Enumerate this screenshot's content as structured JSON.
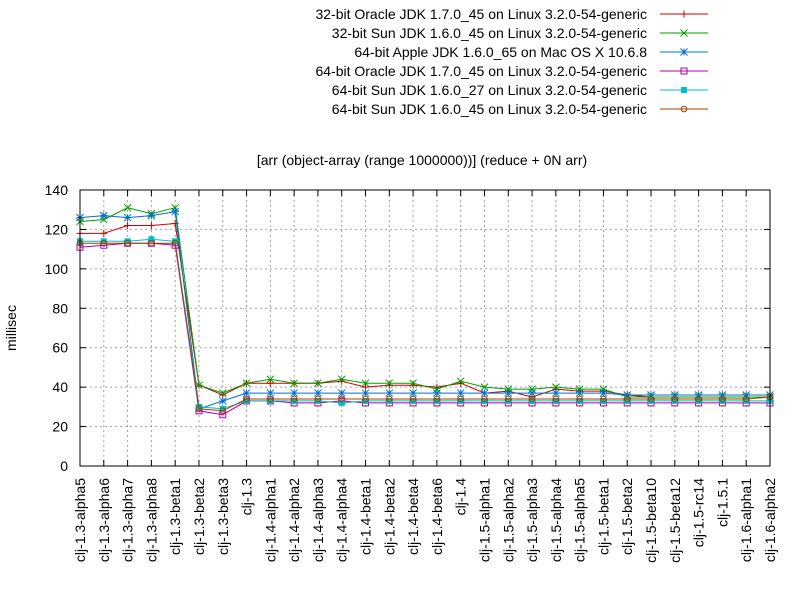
{
  "chart_data": {
    "type": "line",
    "title": "[arr (object-array (range 1000000))] (reduce + 0N arr)",
    "xlabel": "",
    "ylabel": "millisec",
    "ylim": [
      0,
      140
    ],
    "yticks": [
      0,
      20,
      40,
      60,
      80,
      100,
      120,
      140
    ],
    "grid": true,
    "legend_position": "top-right",
    "categories": [
      "clj-1.3-alpha5",
      "clj-1.3-alpha6",
      "clj-1.3-alpha7",
      "clj-1.3-alpha8",
      "clj-1.3-beta1",
      "clj-1.3-beta2",
      "clj-1.3-beta3",
      "clj-1.3",
      "clj-1.4-alpha1",
      "clj-1.4-alpha2",
      "clj-1.4-alpha3",
      "clj-1.4-alpha4",
      "clj-1.4-beta1",
      "clj-1.4-beta2",
      "clj-1.4-beta4",
      "clj-1.4-beta6",
      "clj-1.4",
      "clj-1.5-alpha1",
      "clj-1.5-alpha2",
      "clj-1.5-alpha3",
      "clj-1.5-alpha4",
      "clj-1.5-alpha5",
      "clj-1.5-beta1",
      "clj-1.5-beta2",
      "clj-1.5-beta10",
      "clj-1.5-beta12",
      "clj-1.5-rc14",
      "clj-1.5.1",
      "clj-1.6-alpha1",
      "clj-1.6-alpha2"
    ],
    "series": [
      {
        "name": "32-bit Oracle JDK 1.7.0_45 on Linux 3.2.0-54-generic",
        "color": "#cc0000",
        "marker": "plus",
        "values": [
          118,
          118,
          122,
          122,
          123,
          41,
          36,
          42,
          42,
          42,
          42,
          43,
          40,
          41,
          41,
          40,
          42,
          37,
          38,
          35,
          39,
          38,
          38,
          36,
          35,
          35,
          35,
          35,
          35,
          35
        ]
      },
      {
        "name": "32-bit Sun JDK 1.6.0_45 on Linux 3.2.0-54-generic",
        "color": "#00a000",
        "marker": "x",
        "values": [
          124,
          125,
          131,
          128,
          131,
          41,
          37,
          42,
          44,
          42,
          42,
          44,
          42,
          42,
          42,
          39,
          43,
          40,
          39,
          39,
          40,
          39,
          39,
          35,
          35,
          35,
          35,
          35,
          35,
          35
        ]
      },
      {
        "name": "64-bit Apple JDK 1.6.0_65 on Mac OS X 10.6.8",
        "color": "#0070d0",
        "marker": "star",
        "values": [
          126,
          127,
          126,
          127,
          129,
          29,
          33,
          37,
          37,
          37,
          37,
          37,
          37,
          37,
          37,
          37,
          37,
          37,
          37,
          37,
          37,
          37,
          37,
          36,
          36,
          36,
          36,
          36,
          36,
          36
        ]
      },
      {
        "name": "64-bit Oracle JDK 1.7.0_45 on Linux 3.2.0-54-generic",
        "color": "#b000b0",
        "marker": "square-open",
        "values": [
          111,
          112,
          113,
          113,
          112,
          28,
          26,
          33,
          33,
          32,
          32,
          33,
          32,
          32,
          32,
          32,
          32,
          32,
          32,
          32,
          32,
          32,
          32,
          32,
          32,
          32,
          32,
          32,
          32,
          32
        ]
      },
      {
        "name": "64-bit Sun JDK 1.6.0_27 on Linux 3.2.0-54-generic",
        "color": "#00c0c0",
        "marker": "square-filled",
        "values": [
          114,
          114,
          114,
          115,
          114,
          30,
          29,
          33,
          33,
          33,
          33,
          32,
          33,
          33,
          33,
          33,
          33,
          33,
          33,
          33,
          33,
          33,
          33,
          33,
          33,
          33,
          33,
          33,
          33,
          33
        ]
      },
      {
        "name": "64-bit Sun JDK 1.6.0_45 on Linux 3.2.0-54-generic",
        "color": "#a04000",
        "marker": "circle-open",
        "values": [
          113,
          113,
          113,
          113,
          113,
          29,
          28,
          34,
          34,
          34,
          34,
          34,
          34,
          34,
          34,
          34,
          34,
          34,
          34,
          34,
          34,
          34,
          34,
          34,
          34,
          34,
          34,
          34,
          34,
          35
        ]
      }
    ]
  }
}
